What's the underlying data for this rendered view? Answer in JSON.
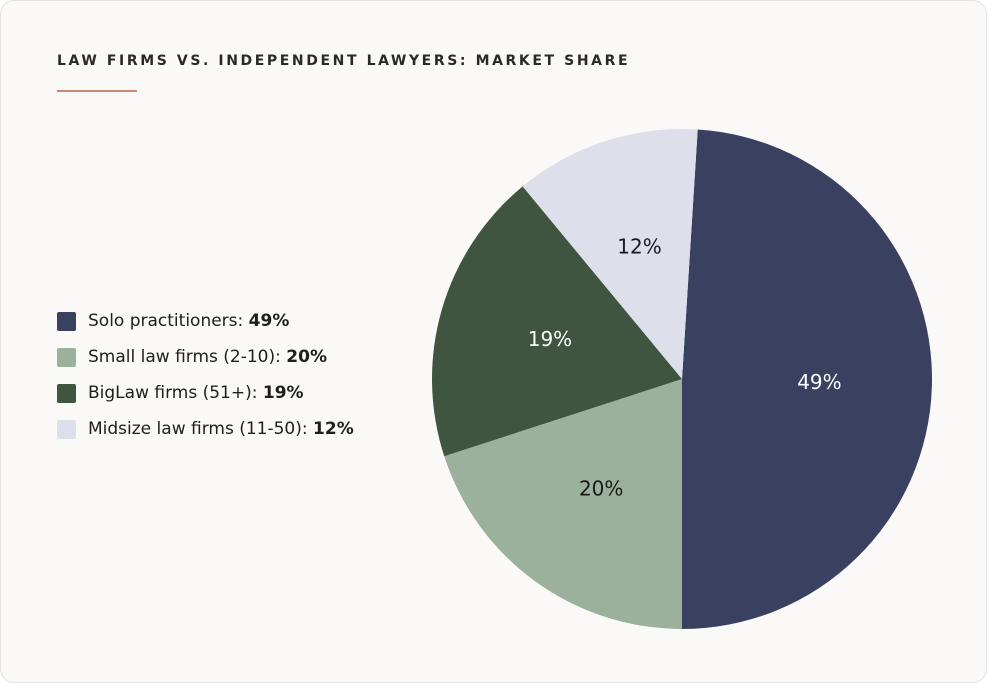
{
  "chart_data": {
    "type": "pie",
    "title": "LAW FIRMS VS. INDEPENDENT LAWYERS: MARKET SHARE",
    "categories": [
      "Solo practitioners",
      "Small law firms (2-10)",
      "BigLaw firms (51+)",
      "Midsize law firms (11-50)"
    ],
    "values": [
      49,
      20,
      19,
      12
    ],
    "value_labels": [
      "49%",
      "20%",
      "19%",
      "12%"
    ],
    "colors": [
      "#3a4160",
      "#9bb19b",
      "#3f553f",
      "#dde0eb"
    ],
    "label_colors": [
      "#ffffff",
      "#1a1a1a",
      "#ffffff",
      "#1a1a1a"
    ]
  }
}
